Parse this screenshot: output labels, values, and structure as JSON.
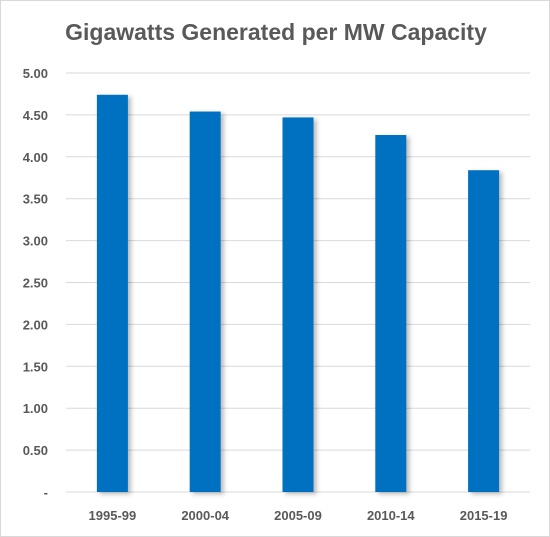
{
  "chart_data": {
    "type": "bar",
    "title": "Gigawatts Generated per MW Capacity",
    "categories": [
      "1995-99",
      "2000-04",
      "2005-09",
      "2010-14",
      "2015-19"
    ],
    "values": [
      4.74,
      4.54,
      4.47,
      4.26,
      3.84
    ],
    "ylim": [
      0,
      5
    ],
    "ytick_labels": [
      "-",
      "0.50",
      "1.00",
      "1.50",
      "2.00",
      "2.50",
      "3.00",
      "3.50",
      "4.00",
      "4.50",
      "5.00"
    ],
    "xlabel": "",
    "ylabel": "",
    "grid": true,
    "legend": "none",
    "bar_color": "#0070C0"
  }
}
